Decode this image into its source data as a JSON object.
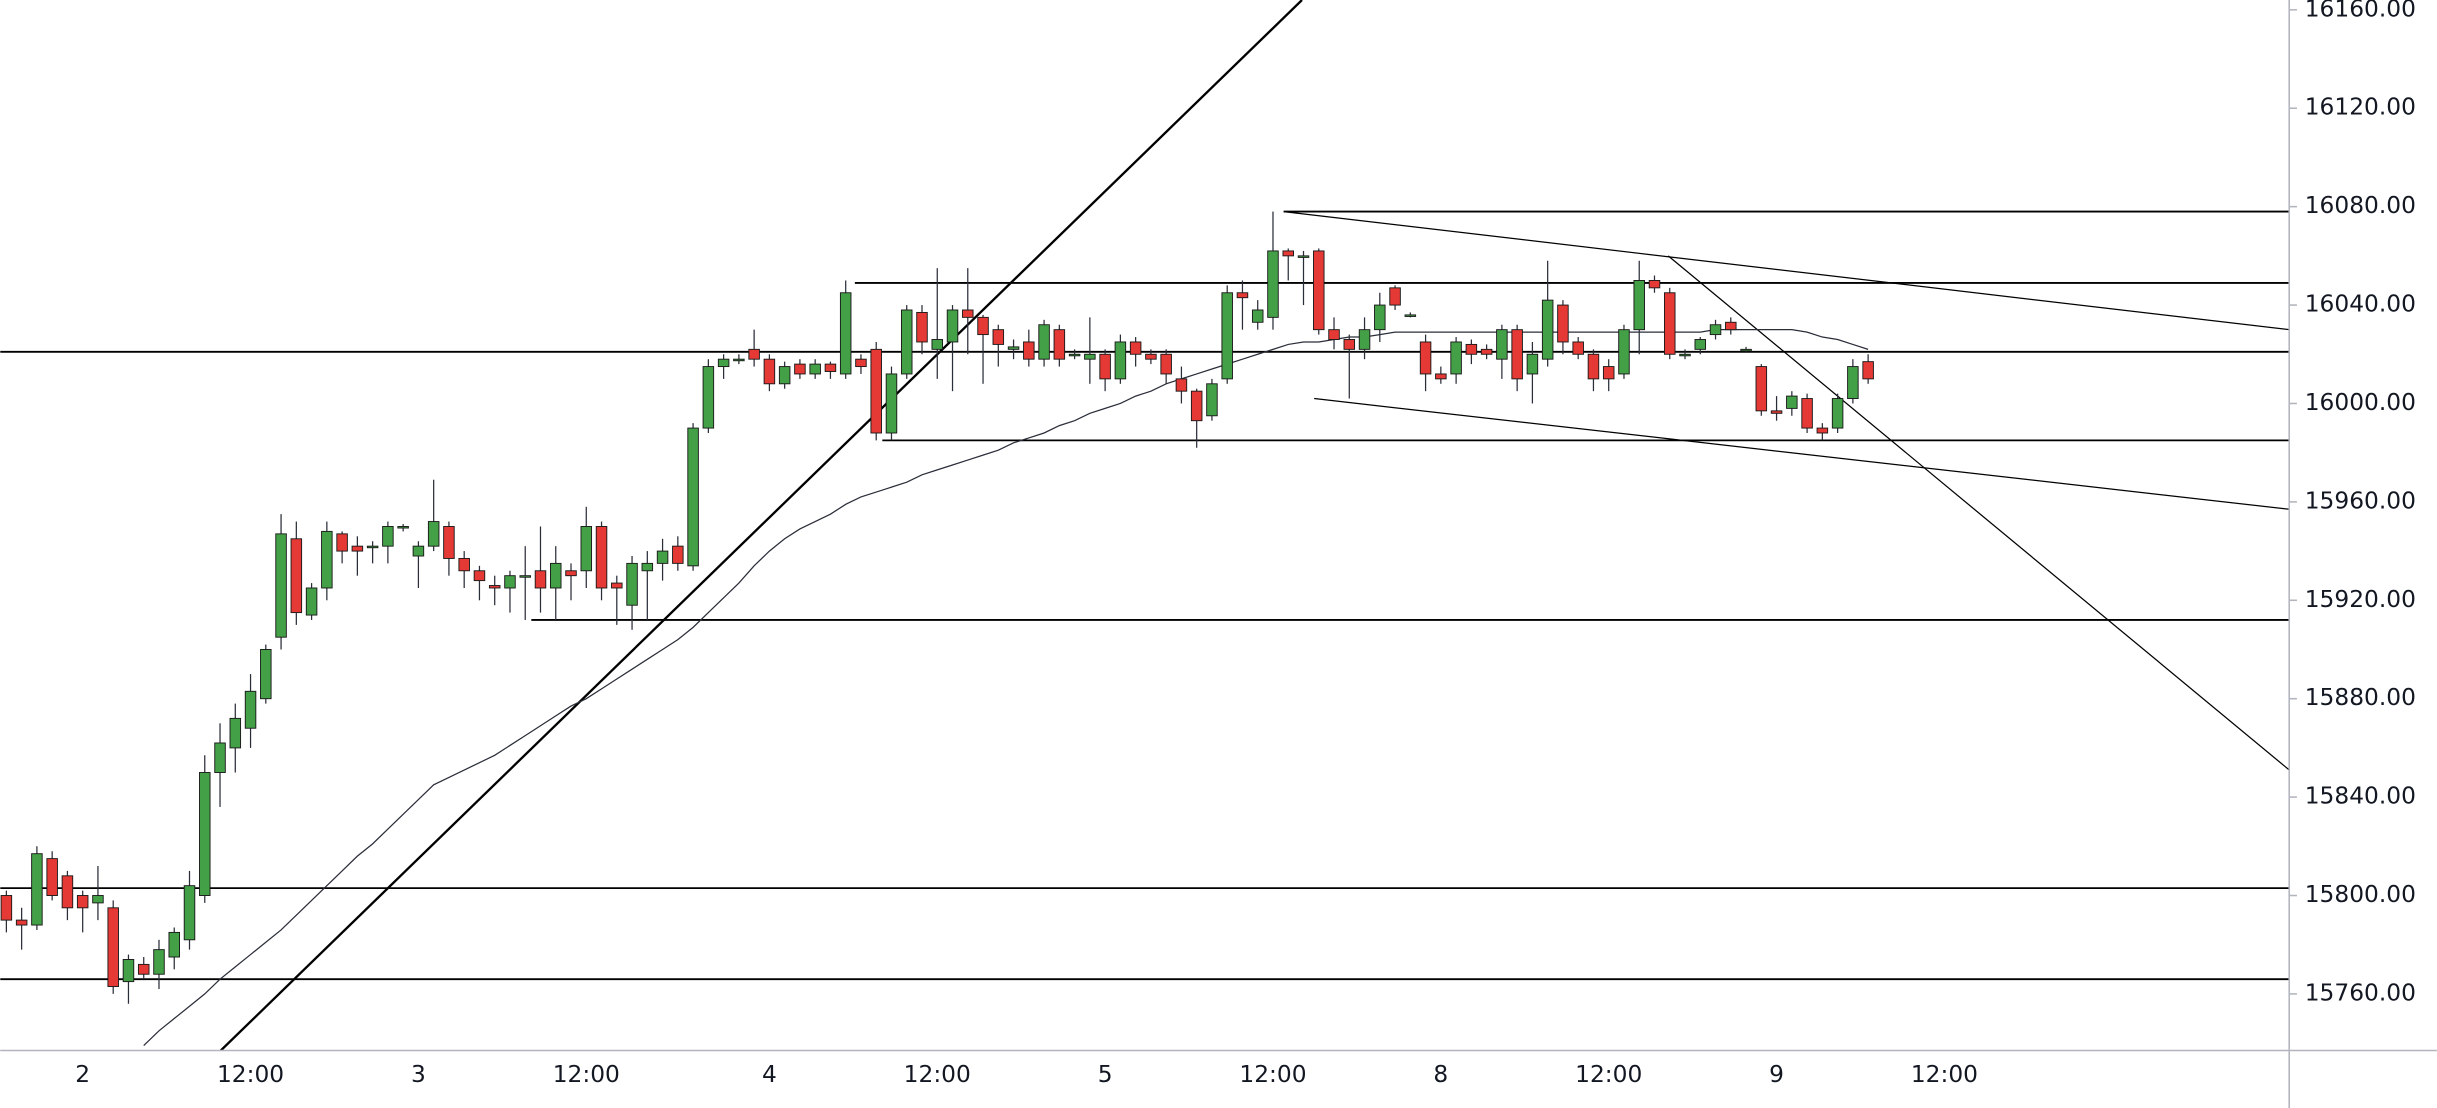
{
  "chart_data": {
    "type": "candlestick",
    "categories": [
      null,
      null,
      null,
      null,
      null,
      "2",
      null,
      null,
      null,
      null,
      null,
      null,
      null,
      null,
      null,
      null,
      "12:00",
      null,
      null,
      null,
      null,
      null,
      null,
      null,
      null,
      null,
      null,
      "3",
      null,
      null,
      null,
      null,
      null,
      null,
      null,
      null,
      null,
      null,
      "12:00",
      null,
      null,
      null,
      null,
      null,
      null,
      null,
      null,
      null,
      null,
      null,
      "4",
      null,
      null,
      null,
      null,
      null,
      null,
      null,
      null,
      null,
      null,
      "12:00",
      null,
      null,
      null,
      null,
      null,
      null,
      null,
      null,
      null,
      null,
      "5",
      null,
      null,
      null,
      null,
      null,
      null,
      null,
      null,
      null,
      null,
      "12:00",
      null,
      null,
      null,
      null,
      null,
      null,
      null,
      null,
      null,
      null,
      "8",
      null,
      null,
      null,
      null,
      null,
      null,
      null,
      null,
      null,
      null,
      "12:00",
      null,
      null,
      null,
      null,
      null,
      null,
      null,
      null,
      null,
      null,
      "9",
      null,
      null,
      null,
      null,
      null,
      null,
      null,
      null,
      null,
      null,
      "12:00"
    ],
    "open": [
      15800,
      15790,
      15788,
      15815,
      15808,
      15800,
      15797,
      15795,
      15765,
      15772,
      15768,
      15775,
      15782,
      15800,
      15850,
      15860,
      15868,
      15880,
      15905,
      15945,
      15914,
      15925,
      15947,
      15942,
      15942,
      15942,
      15950,
      15938,
      15942,
      15950,
      15937,
      15932,
      15926,
      15925,
      15930,
      15932,
      15925,
      15932,
      15932,
      15950,
      15927,
      15918,
      15932,
      15935,
      15942,
      15934,
      15990,
      16015,
      16018,
      16022,
      16018,
      16008,
      16016,
      16012,
      16016,
      16012,
      16018,
      16022,
      15988,
      16012,
      16037,
      16022,
      16025,
      16038,
      16035,
      16030,
      16022,
      16025,
      16018,
      16030,
      16020,
      16018,
      16020,
      16010,
      16025,
      16020,
      16020,
      16010,
      16005,
      15995,
      16010,
      16045,
      16033,
      16035,
      16062,
      16060,
      16062,
      16030,
      16026,
      16022,
      16030,
      16047,
      16036,
      16025,
      16012,
      16012,
      16024,
      16022,
      16018,
      16030,
      16012,
      16018,
      16040,
      16025,
      16020,
      16015,
      16012,
      16030,
      16050,
      16045,
      16020,
      16022,
      16028,
      16033,
      16022,
      16015,
      15997,
      15998,
      16002,
      15990,
      15990,
      16002,
      16017,
      null,
      null,
      null,
      null,
      null
    ],
    "high": [
      15802,
      15795,
      15820,
      15818,
      15810,
      15802,
      15812,
      15798,
      15776,
      15775,
      15782,
      15787,
      15810,
      15857,
      15870,
      15878,
      15890,
      15902,
      15955,
      15952,
      15927,
      15952,
      15948,
      15946,
      15944,
      15952,
      15951,
      15944,
      15969,
      15952,
      15940,
      15934,
      15930,
      15932,
      15942,
      15950,
      15942,
      15935,
      15958,
      15952,
      15930,
      15938,
      15940,
      15945,
      15946,
      15992,
      16018,
      16020,
      16020,
      16030,
      16020,
      16017,
      16018,
      16018,
      16017,
      16050,
      16020,
      16025,
      16015,
      16040,
      16040,
      16055,
      16040,
      16055,
      16036,
      16032,
      16026,
      16030,
      16034,
      16032,
      16022,
      16035,
      16022,
      16028,
      16027,
      16022,
      16022,
      16015,
      16006,
      16010,
      16048,
      16050,
      16042,
      16078,
      16063,
      16062,
      16063,
      16035,
      16028,
      16035,
      16045,
      16048,
      16037,
      16028,
      16015,
      16027,
      16026,
      16024,
      16032,
      16032,
      16025,
      16058,
      16042,
      16027,
      16022,
      16018,
      16032,
      16058,
      16052,
      16047,
      16022,
      16027,
      16034,
      16035,
      16023,
      16016,
      16003,
      16005,
      16004,
      15992,
      16004,
      16018,
      16020,
      null,
      null,
      null,
      null,
      null
    ],
    "low": [
      15785,
      15778,
      15786,
      15798,
      15790,
      15785,
      15790,
      15760,
      15756,
      15766,
      15762,
      15770,
      15778,
      15797,
      15836,
      15850,
      15860,
      15878,
      15900,
      15910,
      15912,
      15920,
      15935,
      15930,
      15935,
      15935,
      15948,
      15925,
      15940,
      15930,
      15925,
      15920,
      15918,
      15915,
      15912,
      15915,
      15912,
      15920,
      15925,
      15920,
      15910,
      15908,
      15912,
      15928,
      15932,
      15932,
      15988,
      16010,
      16016,
      16015,
      16005,
      16006,
      16010,
      16010,
      16010,
      16010,
      16012,
      15985,
      15985,
      16010,
      16020,
      16010,
      16005,
      16020,
      16008,
      16015,
      16018,
      16015,
      16015,
      16015,
      16018,
      16008,
      16005,
      16008,
      16015,
      16016,
      16008,
      16000,
      15982,
      15993,
      16008,
      16030,
      16030,
      16030,
      16050,
      16040,
      16028,
      16022,
      16002,
      16018,
      16025,
      16038,
      16035,
      16005,
      16008,
      16008,
      16016,
      16018,
      16010,
      16005,
      16000,
      16015,
      16020,
      16018,
      16005,
      16005,
      16010,
      16020,
      16045,
      16018,
      16018,
      16020,
      16026,
      16028,
      16021,
      15995,
      15993,
      15995,
      15988,
      15985,
      15988,
      16000,
      16008,
      null,
      null,
      null,
      null,
      null
    ],
    "close": [
      15790,
      15788,
      15817,
      15800,
      15795,
      15795,
      15800,
      15763,
      15774,
      15768,
      15778,
      15785,
      15804,
      15850,
      15862,
      15872,
      15883,
      15900,
      15947,
      15915,
      15925,
      15948,
      15940,
      15940,
      15942,
      15950,
      15950,
      15942,
      15952,
      15937,
      15932,
      15928,
      15925,
      15930,
      15930,
      15925,
      15935,
      15930,
      15950,
      15925,
      15925,
      15935,
      15935,
      15940,
      15935,
      15990,
      16015,
      16018,
      16018,
      16018,
      16008,
      16015,
      16012,
      16016,
      16013,
      16045,
      16015,
      15988,
      16012,
      16038,
      16025,
      16026,
      16038,
      16035,
      16028,
      16024,
      16023,
      16018,
      16032,
      16018,
      16020,
      16020,
      16010,
      16025,
      16020,
      16018,
      16012,
      16005,
      15993,
      16008,
      16045,
      16043,
      16038,
      16062,
      16060,
      16060,
      16030,
      16026,
      16022,
      16030,
      16040,
      16040,
      16036,
      16012,
      16010,
      16025,
      16020,
      16020,
      16030,
      16010,
      16020,
      16042,
      16025,
      16020,
      16010,
      16010,
      16030,
      16050,
      16047,
      16020,
      16020,
      16026,
      16032,
      16030,
      16022,
      15997,
      15996,
      16003,
      15990,
      15988,
      16002,
      16015,
      16010,
      null,
      null,
      null,
      null,
      null
    ],
    "ma": {
      "color": "#2a2e39",
      "values": [
        null,
        null,
        null,
        null,
        null,
        null,
        null,
        null,
        null,
        15739,
        15745,
        15750,
        15755,
        15760,
        15766,
        15771,
        15776,
        15781,
        15786,
        15792,
        15798,
        15804,
        15810,
        15816,
        15821,
        15827,
        15833,
        15839,
        15845,
        15848,
        15851,
        15854,
        15857,
        15861,
        15865,
        15869,
        15873,
        15877,
        15880,
        15884,
        15888,
        15892,
        15896,
        15900,
        15904,
        15909,
        15915,
        15921,
        15927,
        15934,
        15940,
        15945,
        15949,
        15952,
        15955,
        15959,
        15962,
        15964,
        15966,
        15968,
        15971,
        15973,
        15975,
        15977,
        15979,
        15981,
        15984,
        15986,
        15988,
        15991,
        15993,
        15996,
        15998,
        16000,
        16003,
        16005,
        16008,
        16010,
        16012,
        16014,
        16016,
        16018,
        16020,
        16022,
        16024,
        16025,
        16025,
        16026,
        16027,
        16027,
        16028,
        16029,
        16029,
        16029,
        16029,
        16029,
        16029,
        16029,
        16029,
        16029,
        16029,
        16029,
        16029,
        16029,
        16029,
        16029,
        16029,
        16029,
        16029,
        16029,
        16029,
        16029,
        16030,
        16030,
        16030,
        16030,
        16030,
        16030,
        16029,
        16027,
        16026,
        16024,
        16022,
        null,
        null,
        null,
        null,
        null
      ]
    },
    "hlines": [
      {
        "value": 16021
      },
      {
        "value": 16049,
        "from": 55.6
      },
      {
        "value": 16078,
        "from": 83.7
      },
      {
        "value": 15985,
        "from": 57.4
      },
      {
        "value": 15912,
        "from": 34.4
      },
      {
        "value": 15803
      },
      {
        "value": 15766
      }
    ],
    "trendlines": [
      {
        "x": [
          14.05,
          84.9
        ],
        "y": [
          15737,
          16164
        ]
      },
      {
        "x": [
          83.7,
          149.6
        ],
        "y": [
          16078,
          16030
        ]
      },
      {
        "x": [
          85.7,
          149.6
        ],
        "y": [
          16002,
          15957
        ]
      },
      {
        "x": [
          108.9,
          149.6
        ],
        "y": [
          16060,
          15851
        ]
      }
    ],
    "up_color": "#43a047",
    "down_color": "#e53935",
    "ylim": [
      15737,
      16164
    ],
    "yticks": [
      {
        "value": 15760,
        "label": "15760.00"
      },
      {
        "value": 15800,
        "label": "15800.00"
      },
      {
        "value": 15840,
        "label": "15840.00"
      },
      {
        "value": 15880,
        "label": "15880.00"
      },
      {
        "value": 15920,
        "label": "15920.00"
      },
      {
        "value": 15960,
        "label": "15960.00"
      },
      {
        "value": 16000,
        "label": "16000.00"
      },
      {
        "value": 16040,
        "label": "16040.00"
      },
      {
        "value": 16080,
        "label": "16080.00"
      },
      {
        "value": 16120,
        "label": "16120.00"
      },
      {
        "value": 16160,
        "label": "16160.00"
      }
    ]
  }
}
